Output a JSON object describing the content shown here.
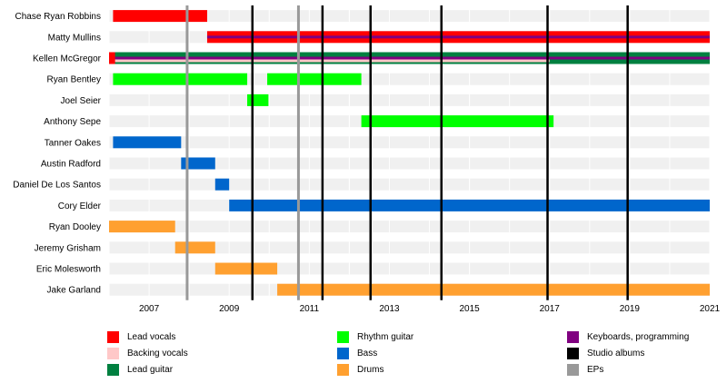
{
  "chart_data": {
    "type": "timeline",
    "title": "",
    "xlim": [
      2006.0,
      2021.0
    ],
    "x_ticks": [
      "2007",
      "2009",
      "2011",
      "2013",
      "2015",
      "2017",
      "2019",
      "2021"
    ],
    "grid": "vertical lines every year",
    "legend_position": "bottom",
    "roles": [
      {
        "key": "lead_vocals",
        "name": "Lead vocals",
        "color": "#ff0000"
      },
      {
        "key": "backing_vocals",
        "name": "Backing vocals",
        "color": "#ffc8c8"
      },
      {
        "key": "lead_guitar",
        "name": "Lead guitar",
        "color": "#008040"
      },
      {
        "key": "rhythm_guitar",
        "name": "Rhythm guitar",
        "color": "#00ff00"
      },
      {
        "key": "bass",
        "name": "Bass",
        "color": "#0066cc"
      },
      {
        "key": "drums",
        "name": "Drums",
        "color": "#ffa030"
      },
      {
        "key": "keyboards",
        "name": "Keyboards, programming",
        "color": "#800080"
      },
      {
        "key": "studio_albums",
        "name": "Studio albums",
        "color": "#000000"
      },
      {
        "key": "eps",
        "name": "EPs",
        "color": "#999999"
      }
    ],
    "members": [
      {
        "name": "Chase Ryan Robbins",
        "bars": [
          {
            "role": "lead_vocals",
            "start": 2006.1,
            "end": 2008.45
          }
        ]
      },
      {
        "name": "Matty Mullins",
        "bars": [
          {
            "role": "lead_vocals",
            "start": 2008.45,
            "end": 2021.0
          },
          {
            "role": "keyboards",
            "start": 2008.45,
            "end": 2021.0,
            "thin": true
          }
        ]
      },
      {
        "name": "Kellen McGregor",
        "bars": [
          {
            "role": "lead_guitar",
            "start": 2006.0,
            "end": 2021.0
          },
          {
            "role": "keyboards",
            "start": 2006.0,
            "end": 2021.0,
            "thin": true
          },
          {
            "role": "backing_vocals",
            "start": 2006.0,
            "end": 2017.0,
            "thin": true,
            "offset": 1
          },
          {
            "role": "lead_vocals",
            "start": 2006.0,
            "end": 2006.15
          }
        ]
      },
      {
        "name": "Ryan Bentley",
        "bars": [
          {
            "role": "rhythm_guitar",
            "start": 2006.1,
            "end": 2009.45
          },
          {
            "role": "rhythm_guitar",
            "start": 2009.95,
            "end": 2012.3
          }
        ]
      },
      {
        "name": "Joel Seier",
        "bars": [
          {
            "role": "rhythm_guitar",
            "start": 2009.45,
            "end": 2009.98
          }
        ]
      },
      {
        "name": "Anthony Sepe",
        "bars": [
          {
            "role": "rhythm_guitar",
            "start": 2012.3,
            "end": 2017.1
          }
        ]
      },
      {
        "name": "Tanner Oakes",
        "bars": [
          {
            "role": "bass",
            "start": 2006.1,
            "end": 2007.8
          }
        ]
      },
      {
        "name": "Austin Radford",
        "bars": [
          {
            "role": "bass",
            "start": 2007.8,
            "end": 2008.65
          }
        ]
      },
      {
        "name": "Daniel De Los Santos",
        "bars": [
          {
            "role": "bass",
            "start": 2008.65,
            "end": 2009.0
          }
        ]
      },
      {
        "name": "Cory Elder",
        "bars": [
          {
            "role": "bass",
            "start": 2009.0,
            "end": 2021.0
          }
        ]
      },
      {
        "name": "Ryan Dooley",
        "bars": [
          {
            "role": "drums",
            "start": 2006.0,
            "end": 2007.65
          }
        ]
      },
      {
        "name": "Jeremy Grisham",
        "bars": [
          {
            "role": "drums",
            "start": 2007.65,
            "end": 2008.65
          }
        ]
      },
      {
        "name": "Eric Molesworth",
        "bars": [
          {
            "role": "drums",
            "start": 2008.65,
            "end": 2010.2
          }
        ]
      },
      {
        "name": "Jake Garland",
        "bars": [
          {
            "role": "drums",
            "start": 2010.2,
            "end": 2021.0
          }
        ]
      }
    ],
    "studio_albums": [
      2009.58,
      2011.33,
      2012.53,
      2014.3,
      2016.95,
      2018.95
    ],
    "eps": [
      2007.95,
      2010.73
    ]
  }
}
